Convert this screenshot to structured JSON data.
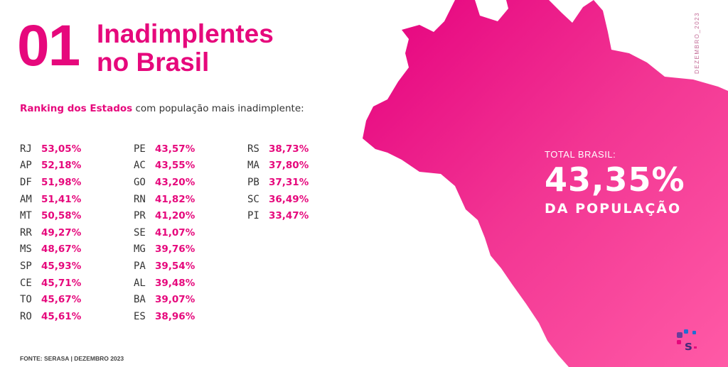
{
  "header": {
    "number": "01",
    "title_line1": "Inadimplentes",
    "title_line2": "no Brasil"
  },
  "subtitle": {
    "highlight": "Ranking dos Estados",
    "rest": " com população mais inadimplente:"
  },
  "ranking": {
    "col1": [
      {
        "uf": "RJ",
        "pct": "53,05%"
      },
      {
        "uf": "AP",
        "pct": "52,18%"
      },
      {
        "uf": "DF",
        "pct": "51,98%"
      },
      {
        "uf": "AM",
        "pct": "51,41%"
      },
      {
        "uf": "MT",
        "pct": "50,58%"
      },
      {
        "uf": "RR",
        "pct": "49,27%"
      },
      {
        "uf": "MS",
        "pct": "48,67%"
      },
      {
        "uf": "SP",
        "pct": "45,93%"
      },
      {
        "uf": "CE",
        "pct": "45,71%"
      },
      {
        "uf": "TO",
        "pct": "45,67%"
      },
      {
        "uf": "RO",
        "pct": "45,61%"
      }
    ],
    "col2": [
      {
        "uf": "PE",
        "pct": "43,57%"
      },
      {
        "uf": "AC",
        "pct": "43,55%"
      },
      {
        "uf": "GO",
        "pct": "43,20%"
      },
      {
        "uf": "RN",
        "pct": "41,82%"
      },
      {
        "uf": "PR",
        "pct": "41,20%"
      },
      {
        "uf": "SE",
        "pct": "41,07%"
      },
      {
        "uf": "MG",
        "pct": "39,76%"
      },
      {
        "uf": "PA",
        "pct": "39,54%"
      },
      {
        "uf": "AL",
        "pct": "39,48%"
      },
      {
        "uf": "BA",
        "pct": "39,07%"
      },
      {
        "uf": "ES",
        "pct": "38,96%"
      }
    ],
    "col3": [
      {
        "uf": "RS",
        "pct": "38,73%"
      },
      {
        "uf": "MA",
        "pct": "37,80%"
      },
      {
        "uf": "PB",
        "pct": "37,31%"
      },
      {
        "uf": "SC",
        "pct": "36,49%"
      },
      {
        "uf": "PI",
        "pct": "33,47%"
      }
    ]
  },
  "total": {
    "label": "TOTAL BRASIL:",
    "value": "43,35%",
    "suffix": "DA POPULAÇÃO"
  },
  "side_date": "DEZEMBRO_2023",
  "footer": "FONTE: SERASA |  DEZEMBRO 2023",
  "colors": {
    "accent": "#e6087c",
    "map_light": "#ff5aa6",
    "map_dark": "#e5007e",
    "logo_purple": "#6a3d9a",
    "logo_blue": "#1f6fd1",
    "logo_pink": "#e6087c"
  },
  "icons": {
    "map": "brazil-map-silhouette",
    "logo": "serasa-logo-icon"
  }
}
